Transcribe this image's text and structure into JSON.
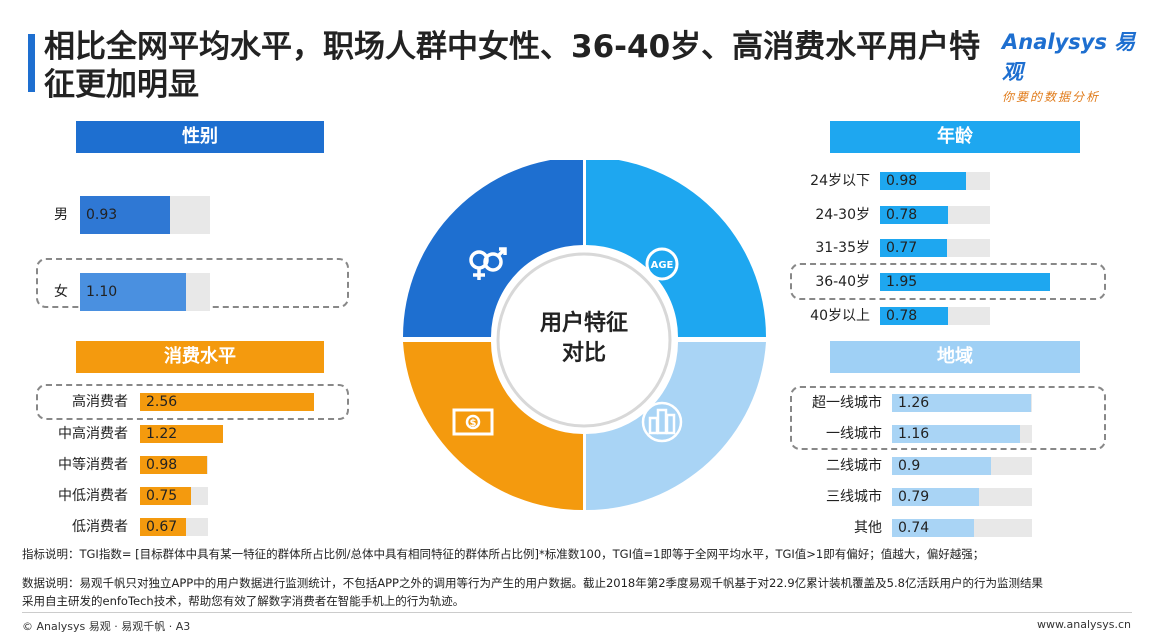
{
  "title": "相比全网平均水平，职场人群中女性、36-40岁、高消费水平用户特征更加明显",
  "logo": {
    "brand": "Analysys 易观",
    "slogan": "你要的数据分析"
  },
  "center_label": "用户特征\n对比",
  "colors": {
    "blue_dark": "#1e6fd0",
    "blue_mid": "#4a90e0",
    "cyan": "#1ea7f0",
    "light_blue": "#9fd0f5",
    "orange": "#f49a0e",
    "orange_light": "#f7b84a"
  },
  "chart_data": [
    {
      "type": "bar",
      "title": "性别",
      "categories": [
        "男",
        "女"
      ],
      "values": [
        0.93,
        1.1
      ],
      "highlight": [
        "女"
      ]
    },
    {
      "type": "bar",
      "title": "年龄",
      "categories": [
        "24岁以下",
        "24-30岁",
        "31-35岁",
        "36-40岁",
        "40岁以上"
      ],
      "values": [
        0.98,
        0.78,
        0.77,
        1.95,
        0.78
      ],
      "highlight": [
        "36-40岁"
      ]
    },
    {
      "type": "bar",
      "title": "消费水平",
      "categories": [
        "高消费者",
        "中高消费者",
        "中等消费者",
        "中低消费者",
        "低消费者"
      ],
      "values": [
        2.56,
        1.22,
        0.98,
        0.75,
        0.67
      ],
      "highlight": [
        "高消费者"
      ]
    },
    {
      "type": "bar",
      "title": "地域",
      "categories": [
        "超一线城市",
        "一线城市",
        "二线城市",
        "三线城市",
        "其他"
      ],
      "values": [
        1.26,
        1.16,
        0.9,
        0.79,
        0.74
      ],
      "highlight": [
        "超一线城市",
        "一线城市"
      ]
    }
  ],
  "notes": {
    "indicator": "指标说明：TGI指数= [目标群体中具有某一特征的群体所占比例/总体中具有相同特征的群体所占比例]*标准数100，TGI值=1即等于全网平均水平，TGI值>1即有偏好；值越大，偏好越强；",
    "data1": "数据说明：易观千帆只对独立APP中的用户数据进行监测统计，不包括APP之外的调用等行为产生的用户数据。截止2018年第2季度易观千帆基于对22.9亿累计装机覆盖及5.8亿活跃用户的行为监测结果",
    "data2": "采用自主研发的enfoTech技术，帮助您有效了解数字消费者在智能手机上的行为轨迹。"
  },
  "footer": {
    "left": "© Analysys 易观 · 易观千帆 · A3",
    "right": "www.analysys.cn"
  },
  "icons": [
    "gender-icon",
    "age-icon",
    "money-icon",
    "city-icon"
  ]
}
